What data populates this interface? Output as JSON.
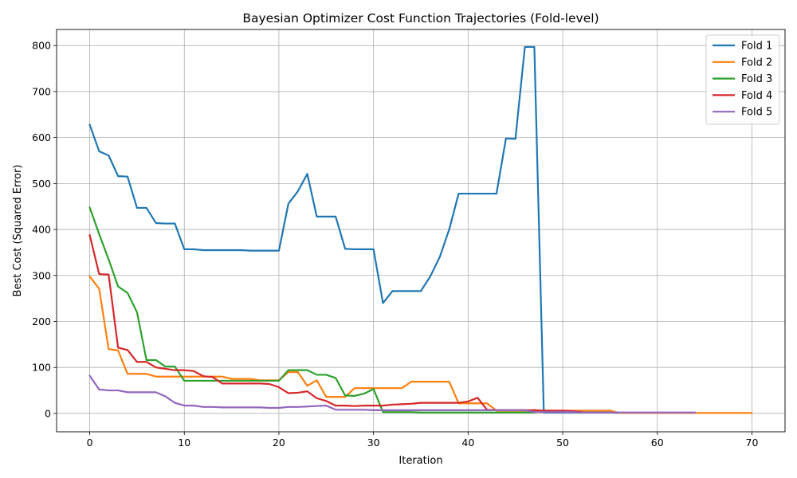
{
  "chart_data": {
    "type": "line",
    "title": "Bayesian Optimizer Cost Function Trajectories (Fold-level)",
    "xlabel": "Iteration",
    "ylabel": "Best Cost (Squared Error)",
    "xlim": [
      -3.5,
      73.5
    ],
    "ylim": [
      -40,
      835
    ],
    "xticks": [
      0,
      10,
      20,
      30,
      40,
      50,
      60,
      70
    ],
    "yticks": [
      0,
      100,
      200,
      300,
      400,
      500,
      600,
      700,
      800
    ],
    "grid": true,
    "legend_position": "top-right",
    "series": [
      {
        "name": "Fold 1",
        "color": "#1f77b4",
        "x": [
          0,
          1,
          2,
          3,
          4,
          5,
          6,
          7,
          8,
          9,
          10,
          11,
          12,
          13,
          14,
          15,
          16,
          17,
          18,
          19,
          20,
          21,
          22,
          23,
          24,
          25,
          26,
          27,
          28,
          29,
          30,
          31,
          32,
          33,
          34,
          35,
          36,
          37,
          38,
          39,
          40,
          41,
          42,
          43,
          44,
          45,
          46,
          47,
          48,
          49,
          50,
          51,
          52,
          53,
          54,
          55,
          56,
          57,
          58,
          59,
          60,
          61,
          62,
          63,
          64
        ],
        "y": [
          628,
          570,
          561,
          516,
          515,
          447,
          447,
          414,
          413,
          413,
          357,
          357,
          355,
          355,
          355,
          355,
          355,
          354,
          354,
          354,
          354,
          456,
          483,
          521,
          428,
          428,
          428,
          358,
          357,
          357,
          357,
          240,
          266,
          266,
          266,
          266,
          298,
          340,
          400,
          478,
          478,
          478,
          478,
          478,
          598,
          597,
          797,
          797,
          2,
          2,
          2,
          2,
          2,
          2,
          2,
          2,
          1,
          1,
          1,
          1,
          1,
          1,
          1,
          1,
          1
        ]
      },
      {
        "name": "Fold 2",
        "color": "#ff7f0e",
        "x": [
          0,
          1,
          2,
          3,
          4,
          5,
          6,
          7,
          8,
          9,
          10,
          11,
          12,
          13,
          14,
          15,
          16,
          17,
          18,
          19,
          20,
          21,
          22,
          23,
          24,
          25,
          26,
          27,
          28,
          29,
          30,
          31,
          32,
          33,
          34,
          35,
          36,
          37,
          38,
          39,
          40,
          41,
          42,
          43,
          44,
          45,
          46,
          47,
          48,
          49,
          50,
          51,
          52,
          53,
          54,
          55,
          56,
          57,
          58,
          59,
          60,
          61,
          62,
          63,
          64,
          65,
          66,
          67,
          68,
          69,
          70
        ],
        "y": [
          298,
          271,
          140,
          137,
          86,
          86,
          86,
          80,
          80,
          80,
          80,
          80,
          80,
          80,
          80,
          75,
          75,
          75,
          72,
          72,
          72,
          90,
          90,
          60,
          72,
          36,
          36,
          36,
          55,
          55,
          55,
          55,
          55,
          55,
          69,
          69,
          69,
          69,
          69,
          22,
          22,
          22,
          22,
          6,
          6,
          6,
          6,
          6,
          6,
          6,
          6,
          6,
          6,
          6,
          6,
          6,
          1,
          1,
          1,
          1,
          1,
          1,
          1,
          1,
          1,
          1,
          1,
          1,
          1,
          1,
          1
        ]
      },
      {
        "name": "Fold 3",
        "color": "#2ca02c",
        "x": [
          0,
          1,
          2,
          3,
          4,
          5,
          6,
          7,
          8,
          9,
          10,
          11,
          12,
          13,
          14,
          15,
          16,
          17,
          18,
          19,
          20,
          21,
          22,
          23,
          24,
          25,
          26,
          27,
          28,
          29,
          30,
          31,
          32,
          33,
          34,
          35,
          36,
          37,
          38,
          39,
          40,
          41,
          42,
          43,
          44,
          45,
          46,
          47
        ],
        "y": [
          448,
          390,
          335,
          276,
          262,
          220,
          116,
          116,
          102,
          102,
          71,
          71,
          71,
          71,
          71,
          71,
          71,
          71,
          71,
          71,
          71,
          94,
          94,
          94,
          84,
          84,
          77,
          39,
          38,
          43,
          53,
          3,
          3,
          3,
          3,
          2,
          2,
          2,
          2,
          2,
          2,
          2,
          2,
          2,
          2,
          2,
          2,
          2
        ]
      },
      {
        "name": "Fold 4",
        "color": "#d62728",
        "x": [
          0,
          1,
          2,
          3,
          4,
          5,
          6,
          7,
          8,
          9,
          10,
          11,
          12,
          13,
          14,
          15,
          16,
          17,
          18,
          19,
          20,
          21,
          22,
          23,
          24,
          25,
          26,
          27,
          28,
          29,
          30,
          31,
          32,
          33,
          34,
          35,
          36,
          37,
          38,
          39,
          40,
          41,
          42,
          43,
          44,
          45,
          46,
          47,
          48,
          49,
          50,
          51,
          52
        ],
        "y": [
          388,
          303,
          302,
          143,
          138,
          112,
          112,
          100,
          97,
          94,
          94,
          92,
          81,
          79,
          65,
          65,
          65,
          65,
          65,
          64,
          57,
          44,
          45,
          48,
          33,
          27,
          17,
          17,
          16,
          17,
          17,
          17,
          19,
          20,
          21,
          23,
          23,
          23,
          23,
          23,
          26,
          34,
          8,
          7,
          7,
          7,
          7,
          7,
          6,
          6,
          6,
          5,
          3
        ]
      },
      {
        "name": "Fold 5",
        "color": "#9467bd",
        "x": [
          0,
          1,
          2,
          3,
          4,
          5,
          6,
          7,
          8,
          9,
          10,
          11,
          12,
          13,
          14,
          15,
          16,
          17,
          18,
          19,
          20,
          21,
          22,
          23,
          24,
          25,
          26,
          27,
          28,
          29,
          30,
          31,
          32,
          33,
          34,
          35,
          36,
          37,
          38,
          39,
          40,
          41,
          42,
          43,
          44,
          45,
          46,
          47,
          48,
          49,
          50,
          51,
          52,
          53,
          54,
          55,
          56,
          57,
          58,
          59,
          60,
          61,
          62,
          63,
          64
        ],
        "y": [
          82,
          52,
          50,
          50,
          46,
          46,
          46,
          46,
          37,
          23,
          17,
          17,
          14,
          14,
          13,
          13,
          13,
          13,
          13,
          12,
          12,
          14,
          14,
          15,
          16,
          17,
          8,
          8,
          8,
          8,
          7,
          7,
          7,
          7,
          7,
          7,
          7,
          7,
          7,
          7,
          7,
          7,
          7,
          7,
          7,
          7,
          7,
          3,
          3,
          3,
          3,
          3,
          2,
          2,
          2,
          2,
          2,
          2,
          2,
          2,
          2,
          2,
          2,
          2,
          2
        ]
      }
    ]
  }
}
